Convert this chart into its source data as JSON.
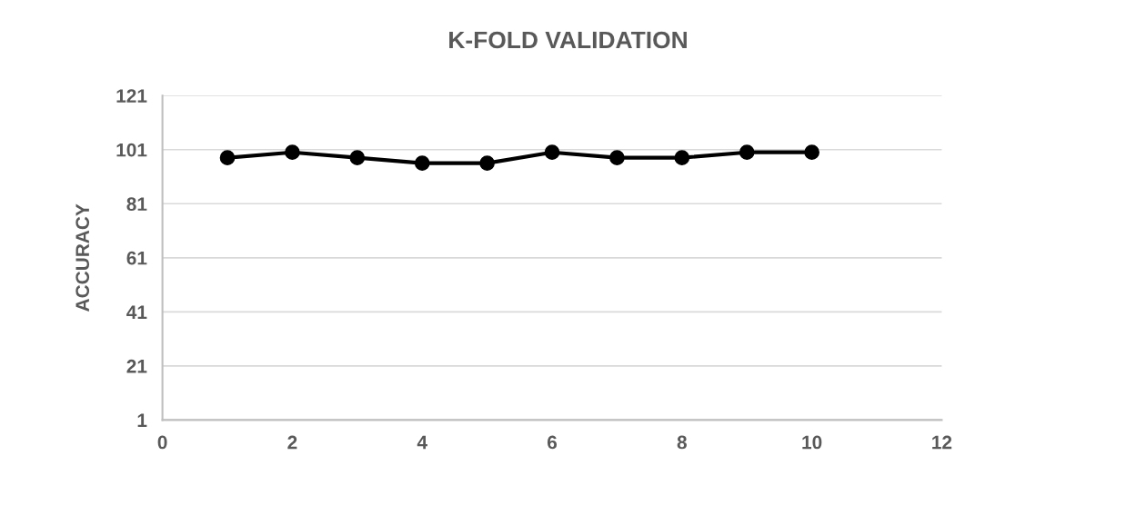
{
  "chart_data": {
    "type": "line",
    "title": "K-FOLD VALIDATION",
    "ylabel": "ACCURACY",
    "x": [
      1,
      2,
      3,
      4,
      5,
      6,
      7,
      8,
      9,
      10
    ],
    "series": [
      {
        "color": "#000000",
        "values": [
          98,
          100,
          98,
          96,
          96,
          100,
          98,
          98,
          100,
          100
        ]
      }
    ],
    "xlim": [
      0,
      12
    ],
    "xticks": [
      0,
      2,
      4,
      6,
      8,
      10,
      12
    ],
    "ylim": [
      1,
      121
    ],
    "yticks": [
      1,
      21,
      41,
      61,
      81,
      101,
      121
    ],
    "grid": "y",
    "marker": "circle",
    "line_style": "solid"
  }
}
